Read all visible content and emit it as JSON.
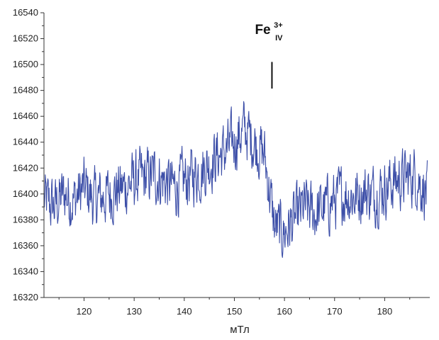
{
  "chart_data": {
    "type": "line",
    "title": "",
    "xlabel": "мТл",
    "ylabel": "",
    "xlim": [
      112,
      189
    ],
    "ylim": [
      16320,
      16540
    ],
    "x_ticks": [
      120,
      130,
      140,
      150,
      160,
      170,
      180
    ],
    "y_ticks": [
      16320,
      16340,
      16360,
      16380,
      16400,
      16420,
      16440,
      16460,
      16480,
      16500,
      16520,
      16540
    ],
    "grid": false,
    "legend": "none",
    "line_color": "#3d4fa8",
    "series": [
      {
        "x": [
          112,
          114,
          116,
          118,
          120,
          122,
          124,
          126,
          128,
          130,
          132,
          134,
          136,
          138,
          140,
          142,
          144,
          146,
          148,
          150,
          152,
          154,
          156,
          158,
          160,
          162,
          164,
          166,
          168,
          170,
          172,
          174,
          176,
          178,
          180,
          182,
          184,
          186,
          188.5
        ],
        "values": [
          16395,
          16390,
          16400,
          16395,
          16405,
          16395,
          16398,
          16402,
          16405,
          16410,
          16412,
          16415,
          16410,
          16405,
          16410,
          16415,
          16420,
          16428,
          16432,
          16440,
          16450,
          16440,
          16430,
          16375,
          16370,
          16380,
          16390,
          16385,
          16390,
          16395,
          16400,
          16398,
          16402,
          16400,
          16405,
          16410,
          16412,
          16415,
          16400
        ]
      }
    ],
    "annotation": {
      "base": "Fe",
      "superscript": "3+",
      "subscript": "IV",
      "x": 157.5,
      "marker_y_range": [
        16488,
        16502
      ]
    }
  }
}
